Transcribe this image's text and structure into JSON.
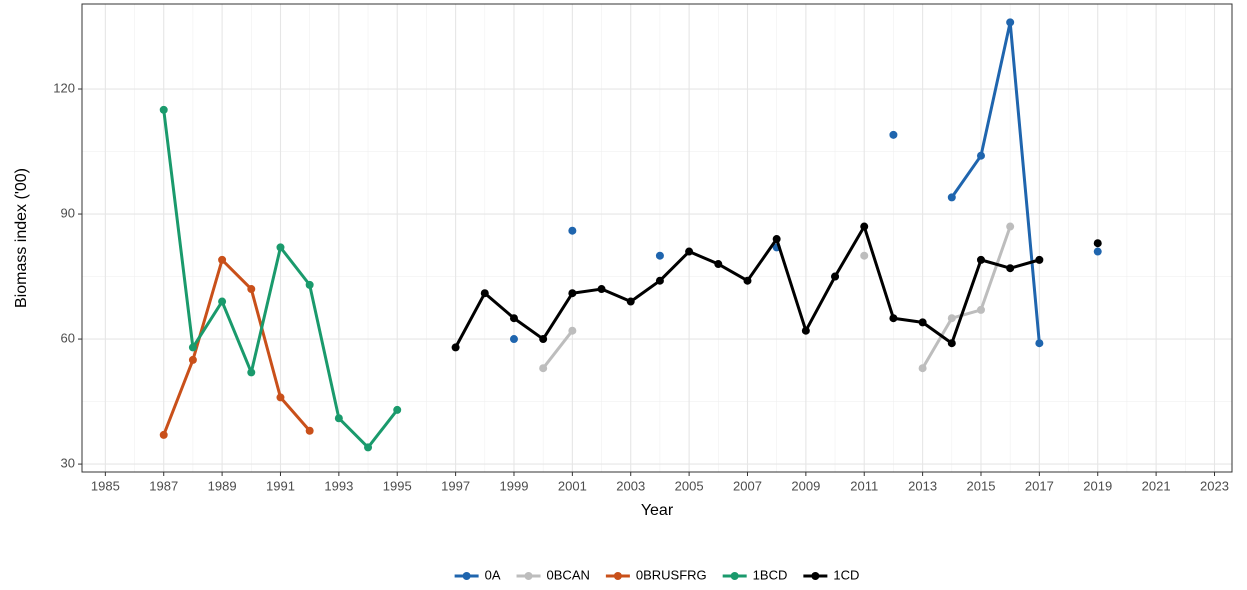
{
  "chart_data": {
    "type": "line",
    "xlabel": "Year",
    "ylabel": "Biomass index ('00)",
    "x": [
      1987,
      1988,
      1989,
      1990,
      1991,
      1992,
      1993,
      1994,
      1995,
      1996,
      1997,
      1998,
      1999,
      2000,
      2001,
      2002,
      2003,
      2004,
      2005,
      2006,
      2007,
      2008,
      2009,
      2010,
      2011,
      2012,
      2013,
      2014,
      2015,
      2016,
      2017,
      2018,
      2019
    ],
    "series": [
      {
        "name": "0A",
        "color": "#1f65ae",
        "values": [
          null,
          null,
          null,
          null,
          null,
          null,
          null,
          null,
          null,
          null,
          null,
          null,
          60,
          null,
          86,
          null,
          null,
          80,
          null,
          null,
          null,
          82,
          null,
          75,
          null,
          109,
          null,
          94,
          104,
          136,
          59,
          null,
          81
        ]
      },
      {
        "name": "0BCAN",
        "color": "#bdbdbd",
        "values": [
          null,
          null,
          null,
          null,
          null,
          null,
          null,
          null,
          null,
          null,
          null,
          null,
          null,
          53,
          62,
          null,
          null,
          null,
          null,
          null,
          null,
          null,
          null,
          null,
          80,
          null,
          53,
          65,
          67,
          87,
          null,
          null,
          null
        ]
      },
      {
        "name": "0BRUSFRG",
        "color": "#c9501a",
        "values": [
          37,
          55,
          79,
          72,
          46,
          38,
          null,
          null,
          null,
          null,
          null,
          null,
          null,
          null,
          null,
          null,
          null,
          null,
          null,
          null,
          null,
          null,
          null,
          null,
          null,
          null,
          null,
          null,
          null,
          null,
          null,
          null,
          null
        ]
      },
      {
        "name": "1BCD",
        "color": "#1a9a6c",
        "values": [
          115,
          58,
          69,
          52,
          82,
          73,
          41,
          34,
          43,
          null,
          null,
          null,
          null,
          null,
          null,
          null,
          null,
          null,
          null,
          null,
          null,
          null,
          null,
          null,
          null,
          null,
          null,
          null,
          null,
          null,
          null,
          null,
          null
        ]
      },
      {
        "name": "1CD",
        "color": "#000000",
        "values": [
          null,
          null,
          null,
          null,
          null,
          null,
          null,
          null,
          null,
          null,
          58,
          71,
          65,
          60,
          71,
          72,
          69,
          74,
          81,
          78,
          74,
          84,
          62,
          75,
          87,
          65,
          64,
          59,
          79,
          77,
          79,
          null,
          83
        ]
      }
    ],
    "xlim": [
      1984.2,
      2023.6
    ],
    "ylim": [
      28.1,
      140.4
    ],
    "xticks": [
      1985,
      1987,
      1989,
      1991,
      1993,
      1995,
      1997,
      1999,
      2001,
      2003,
      2005,
      2007,
      2009,
      2011,
      2013,
      2015,
      2017,
      2019,
      2021,
      2023
    ],
    "yticks": [
      30,
      60,
      90,
      120
    ],
    "grid": true,
    "legend": "bottom"
  }
}
